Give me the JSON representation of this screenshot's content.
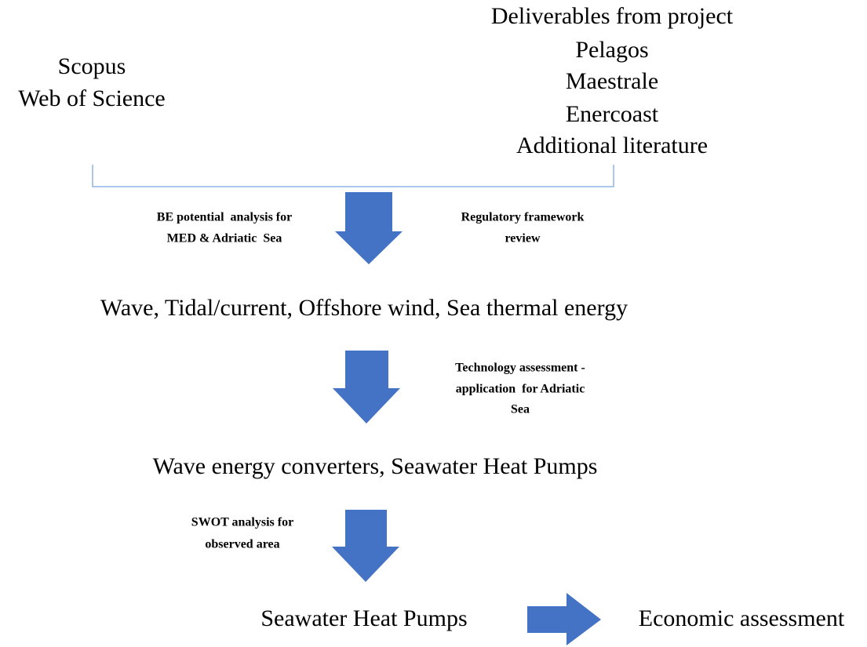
{
  "sources": {
    "left": [
      "Scopus",
      "Web of Science"
    ],
    "right": [
      "Deliverables from project",
      "Pelagos",
      "Maestrale",
      "Enercoast",
      "Additional literature"
    ]
  },
  "stages": [
    "Wave, Tidal/current, Offshore wind, Sea thermal energy",
    "Wave energy converters, Seawater Heat Pumps",
    "Seawater Heat Pumps",
    "Economic assessment"
  ],
  "arrow_labels": {
    "step1_left": [
      "BE potential  analysis for",
      "MED & Adriatic  Sea"
    ],
    "step1_right": [
      "Regulatory framework",
      "review"
    ],
    "step2_right": [
      "Technology assessment -",
      "application  for Adriatic",
      "Sea"
    ],
    "step3_left": [
      "SWOT analysis for",
      "observed area"
    ]
  }
}
